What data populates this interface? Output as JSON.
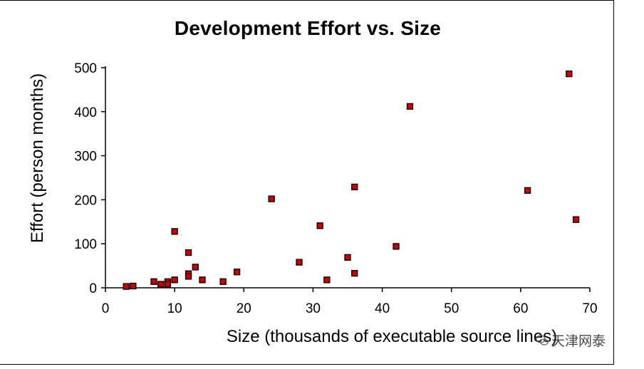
{
  "chart_data": {
    "type": "scatter",
    "title": "Development Effort vs. Size",
    "xlabel": "Size (thousands of executable source lines)",
    "ylabel": "Effort (person months)",
    "xlim": [
      0,
      70
    ],
    "ylim": [
      0,
      500
    ],
    "xticks": [
      0,
      10,
      20,
      30,
      40,
      50,
      60,
      70
    ],
    "yticks": [
      0,
      100,
      200,
      300,
      400,
      500
    ],
    "grid": false,
    "marker_color": "#cc0000",
    "marker_edge": "#000000",
    "points": [
      [
        3,
        3
      ],
      [
        4,
        4
      ],
      [
        7,
        14
      ],
      [
        8,
        8
      ],
      [
        9,
        14
      ],
      [
        9,
        8
      ],
      [
        10,
        18
      ],
      [
        10,
        128
      ],
      [
        12,
        80
      ],
      [
        12,
        32
      ],
      [
        12,
        26
      ],
      [
        13,
        47
      ],
      [
        14,
        18
      ],
      [
        17,
        14
      ],
      [
        19,
        36
      ],
      [
        24,
        202
      ],
      [
        28,
        58
      ],
      [
        31,
        141
      ],
      [
        32,
        18
      ],
      [
        35,
        69
      ],
      [
        36,
        229
      ],
      [
        36,
        33
      ],
      [
        42,
        94
      ],
      [
        44,
        412
      ],
      [
        61,
        221
      ],
      [
        67,
        486
      ],
      [
        68,
        155
      ]
    ]
  },
  "watermark": {
    "text": "天津网泰"
  }
}
